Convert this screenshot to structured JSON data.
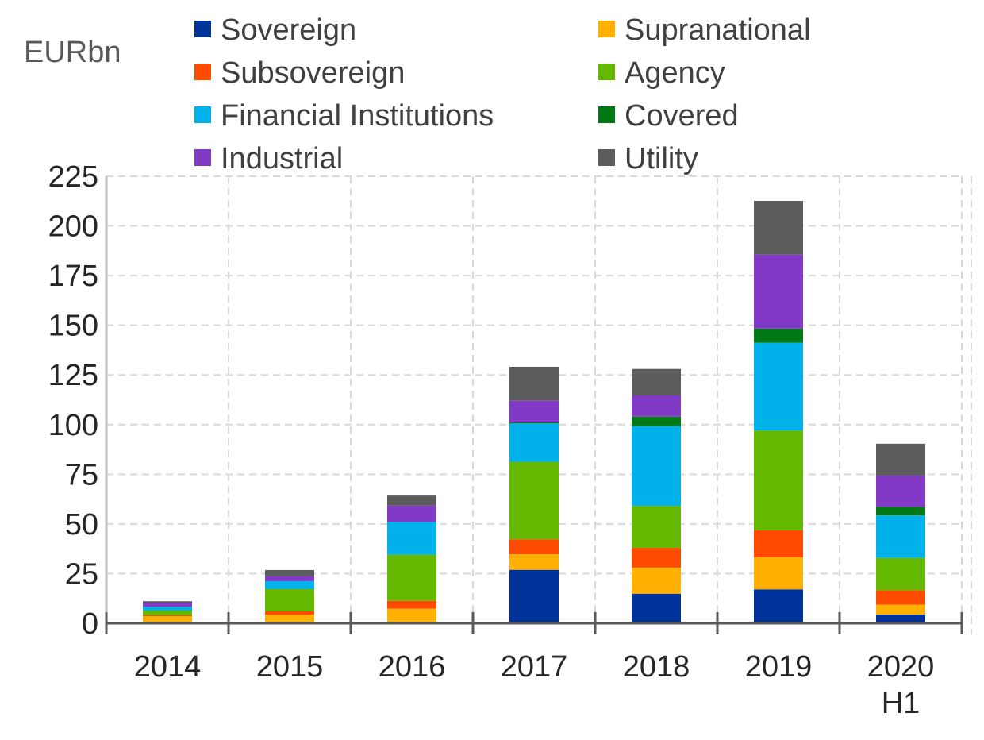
{
  "chart_data": {
    "type": "bar",
    "stacked": true,
    "unit_label": "EURbn",
    "title": "",
    "xlabel": "",
    "ylabel": "EURbn",
    "ylim": [
      0,
      225
    ],
    "yticks": [
      0,
      25,
      50,
      75,
      100,
      125,
      150,
      175,
      200,
      225
    ],
    "grid": true,
    "legend_position": "top",
    "categories": [
      "2014",
      "2015",
      "2016",
      "2017",
      "2018",
      "2019",
      "2020\nH1"
    ],
    "category_lines": [
      [
        "2014"
      ],
      [
        "2015"
      ],
      [
        "2016"
      ],
      [
        "2017"
      ],
      [
        "2018"
      ],
      [
        "2019"
      ],
      [
        "2020",
        "H1"
      ]
    ],
    "series": [
      {
        "name": "Sovereign",
        "color": "#003399",
        "values": [
          0,
          0,
          0,
          26.9,
          14.9,
          17.1,
          4.4
        ]
      },
      {
        "name": "Supranational",
        "color": "#FFB000",
        "values": [
          3.5,
          4.4,
          7.3,
          7.8,
          13.1,
          16.1,
          5.0
        ]
      },
      {
        "name": "Subsovereign",
        "color": "#FF4B00",
        "values": [
          0.5,
          1.6,
          4.0,
          7.6,
          10.0,
          13.6,
          7.2
        ]
      },
      {
        "name": "Agency",
        "color": "#65B800",
        "values": [
          2.4,
          11.2,
          23.2,
          39.0,
          21.1,
          50.2,
          16.3
        ]
      },
      {
        "name": "Financial Institutions",
        "color": "#00B1EA",
        "values": [
          1.9,
          4.0,
          16.5,
          19.3,
          40.2,
          44.2,
          21.4
        ]
      },
      {
        "name": "Covered",
        "color": "#007816",
        "values": [
          0,
          0,
          0,
          0.5,
          4.7,
          7.2,
          4.3
        ]
      },
      {
        "name": "Industrial",
        "color": "#8139C6",
        "values": [
          2.0,
          2.4,
          8.2,
          10.9,
          10.7,
          37.1,
          15.7
        ]
      },
      {
        "name": "Utility",
        "color": "#5C5C5C",
        "values": [
          0.8,
          3.2,
          5.1,
          17.1,
          13.3,
          27.1,
          16.1
        ]
      }
    ],
    "legend_order": [
      [
        "Sovereign",
        "Supranational"
      ],
      [
        "Subsovereign",
        "Agency"
      ],
      [
        "Financial Institutions",
        "Covered"
      ],
      [
        "Industrial",
        "Utility"
      ]
    ]
  }
}
